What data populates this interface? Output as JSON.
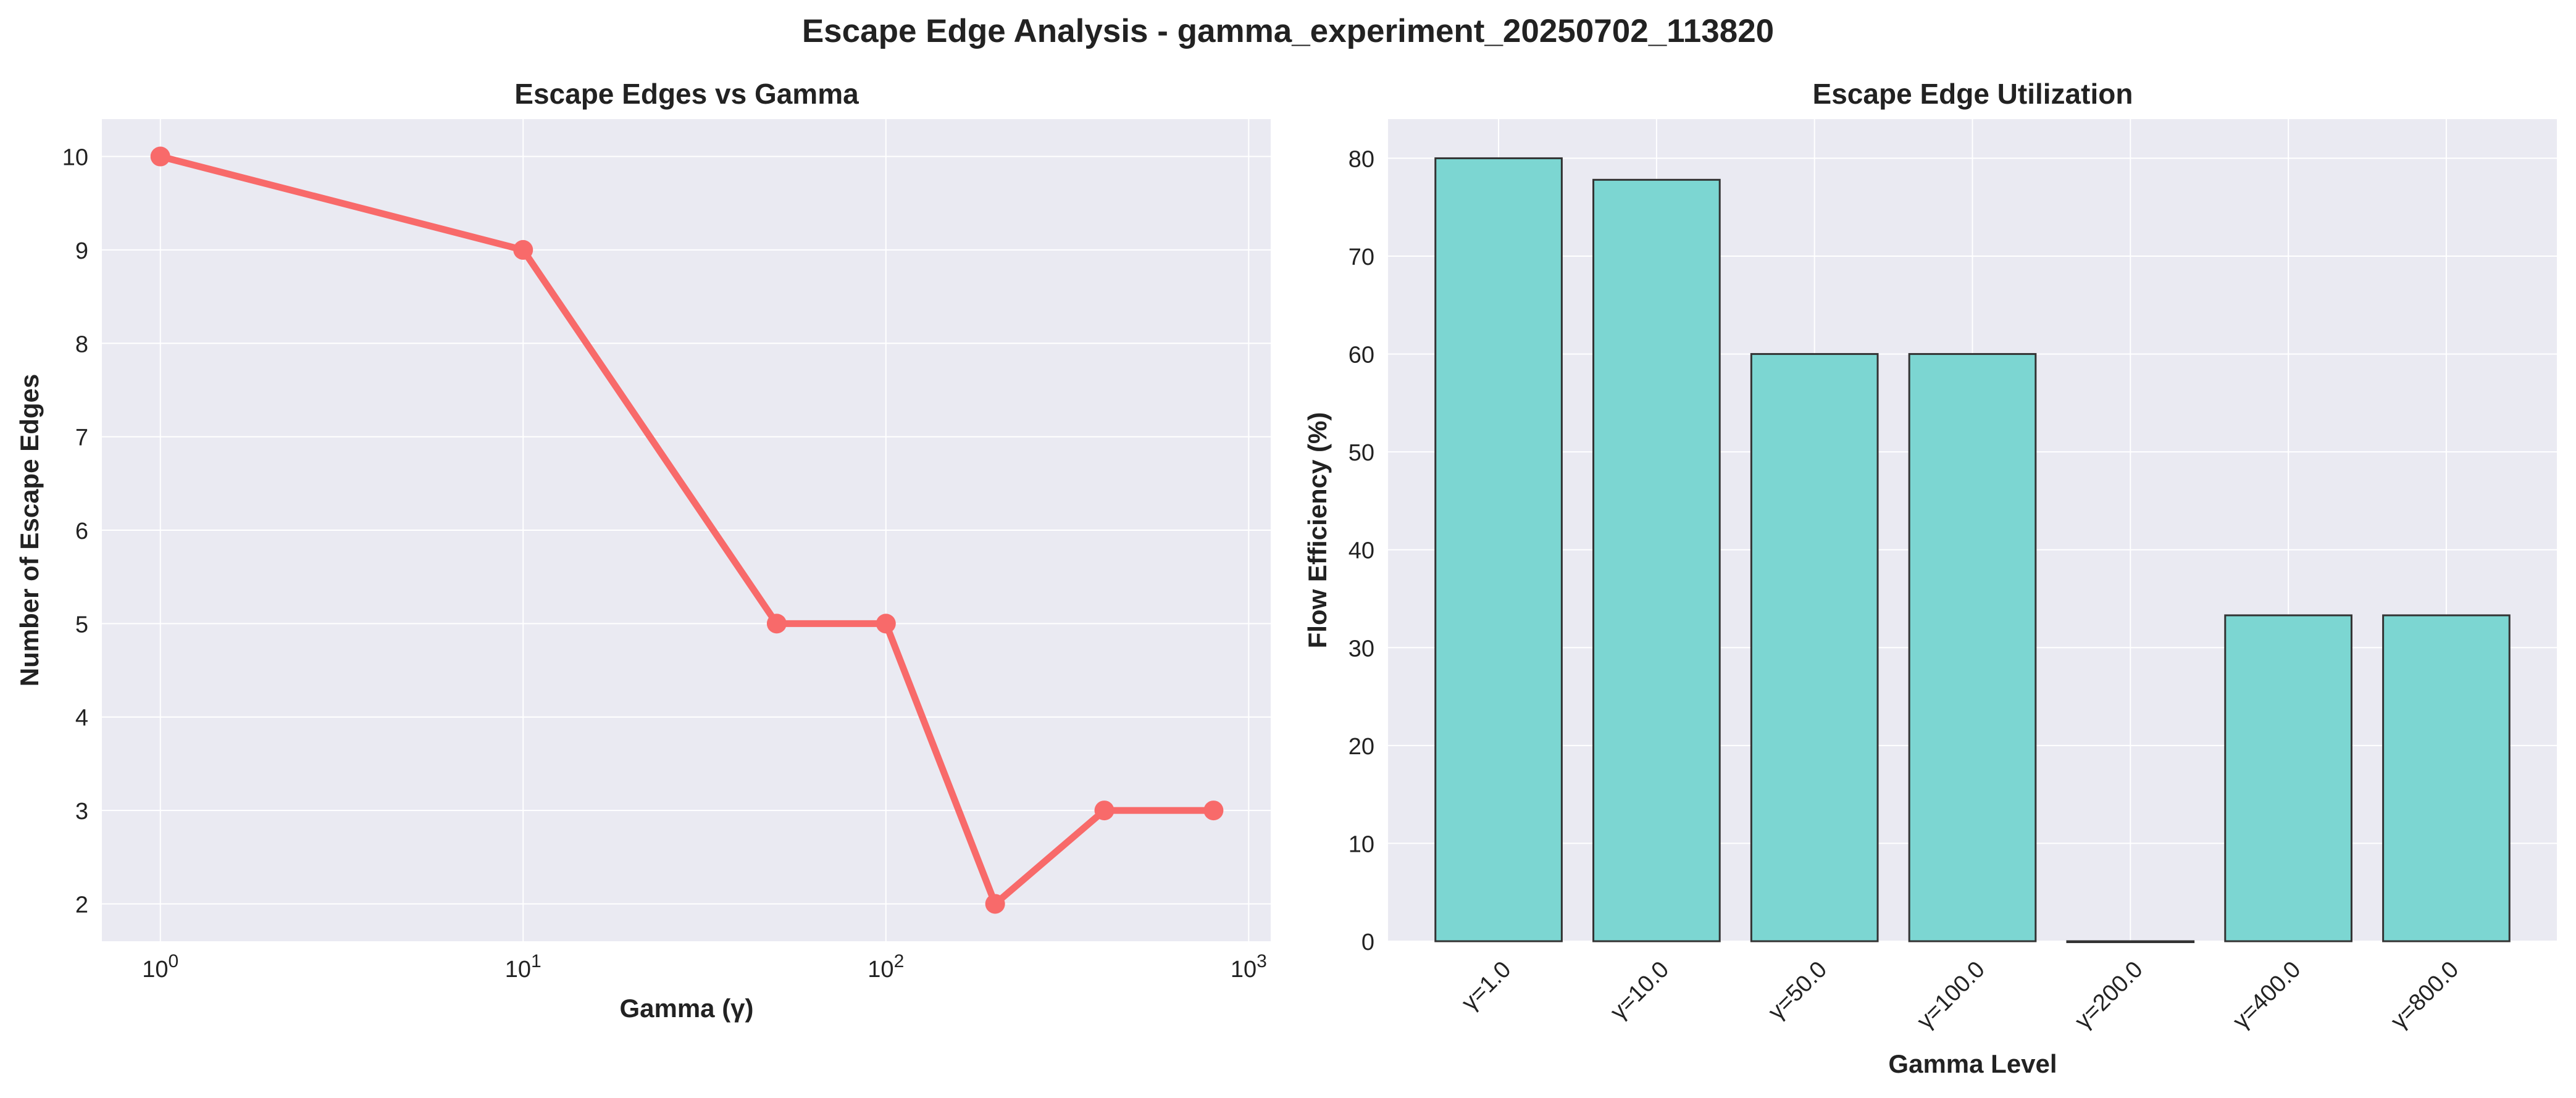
{
  "figure_title": "Escape Edge Analysis - gamma_experiment_20250702_113820",
  "chart_data": [
    {
      "type": "line",
      "title": "Escape Edges vs Gamma",
      "xlabel": "Gamma (γ)",
      "ylabel": "Number of Escape Edges",
      "xscale": "log",
      "xlim": [
        0.69,
        1150
      ],
      "ylim": [
        1.6,
        10.4
      ],
      "xtick_base": "10",
      "xticks": [
        {
          "value": 1,
          "exponent": "0"
        },
        {
          "value": 10,
          "exponent": "1"
        },
        {
          "value": 100,
          "exponent": "2"
        },
        {
          "value": 1000,
          "exponent": "3"
        }
      ],
      "yticks": [
        2,
        3,
        4,
        5,
        6,
        7,
        8,
        9,
        10
      ],
      "grid": true,
      "x": [
        1,
        10,
        50,
        100,
        200,
        400,
        800
      ],
      "y": [
        10,
        9,
        5,
        5,
        2,
        3,
        3
      ],
      "color": "#F86A6A"
    },
    {
      "type": "bar",
      "title": "Escape Edge Utilization",
      "xlabel": "Gamma Level",
      "ylabel": "Flow Efficiency (%)",
      "ylim": [
        0,
        84
      ],
      "yticks": [
        0,
        10,
        20,
        30,
        40,
        50,
        60,
        70,
        80
      ],
      "grid": true,
      "categories": [
        "γ=1.0",
        "γ=10.0",
        "γ=50.0",
        "γ=100.0",
        "γ=200.0",
        "γ=400.0",
        "γ=800.0"
      ],
      "values": [
        80.0,
        77.8,
        60.0,
        60.0,
        0.0,
        33.3,
        33.3
      ],
      "color": "#7CD6D2"
    }
  ]
}
